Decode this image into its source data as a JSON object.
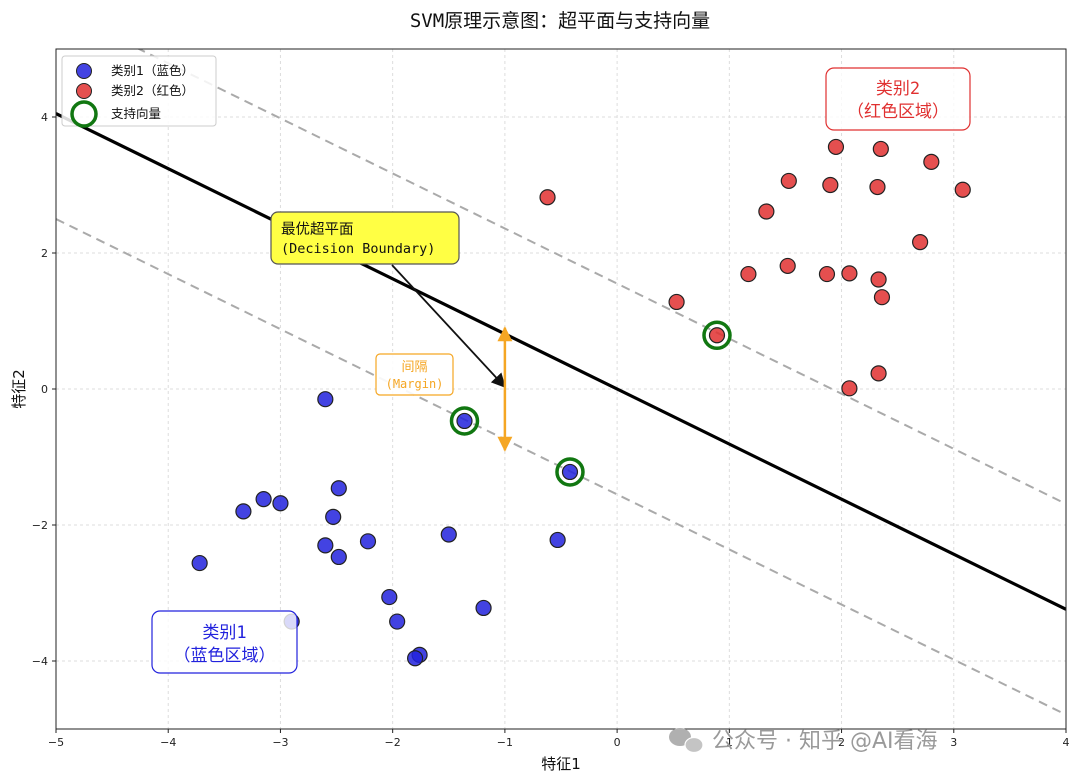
{
  "chart_data": {
    "type": "scatter",
    "title": "SVM原理示意图：超平面与支持向量",
    "xlabel": "特征1",
    "ylabel": "特征2",
    "xlim": [
      -5,
      4
    ],
    "ylim": [
      -5,
      5
    ],
    "xticks": [
      -5,
      -4,
      -3,
      -2,
      -1,
      0,
      1,
      2,
      3,
      4
    ],
    "yticks": [
      -4,
      -2,
      0,
      2,
      4
    ],
    "grid": true,
    "legend_position": "top-left",
    "series": [
      {
        "name": "类别1（蓝色）",
        "color": "#2222dd",
        "points": [
          [
            -2.6,
            -0.15
          ],
          [
            -3.15,
            -1.62
          ],
          [
            -3.0,
            -1.68
          ],
          [
            -3.33,
            -1.8
          ],
          [
            -2.48,
            -1.46
          ],
          [
            -2.53,
            -1.88
          ],
          [
            -2.6,
            -2.3
          ],
          [
            -2.48,
            -2.47
          ],
          [
            -2.22,
            -2.24
          ],
          [
            -3.72,
            -2.56
          ],
          [
            -1.5,
            -2.14
          ],
          [
            -0.53,
            -2.22
          ],
          [
            -2.03,
            -3.06
          ],
          [
            -1.19,
            -3.22
          ],
          [
            -2.9,
            -3.42
          ],
          [
            -1.96,
            -3.42
          ],
          [
            -1.76,
            -3.91
          ],
          [
            -1.8,
            -3.96
          ],
          [
            -1.36,
            -0.47
          ],
          [
            -0.42,
            -1.22
          ]
        ]
      },
      {
        "name": "类别2（红色）",
        "color": "#e03030",
        "points": [
          [
            1.95,
            3.56
          ],
          [
            2.35,
            3.53
          ],
          [
            2.8,
            3.34
          ],
          [
            3.08,
            2.93
          ],
          [
            1.53,
            3.06
          ],
          [
            1.9,
            3.0
          ],
          [
            2.32,
            2.97
          ],
          [
            1.33,
            2.61
          ],
          [
            -0.62,
            2.82
          ],
          [
            2.7,
            2.16
          ],
          [
            1.17,
            1.69
          ],
          [
            1.52,
            1.81
          ],
          [
            1.87,
            1.69
          ],
          [
            2.07,
            1.7
          ],
          [
            2.33,
            1.61
          ],
          [
            2.36,
            1.35
          ],
          [
            0.53,
            1.28
          ],
          [
            0.89,
            0.79
          ],
          [
            2.33,
            0.23
          ],
          [
            2.07,
            0.01
          ]
        ]
      }
    ],
    "support_vectors": {
      "name": "支持向量",
      "color": "#117711",
      "points": [
        [
          -1.36,
          -0.47
        ],
        [
          -0.42,
          -1.22
        ],
        [
          0.89,
          0.79
        ]
      ]
    },
    "hyperplane": {
      "slope": -0.81,
      "intercept": 0.0,
      "color": "#000000"
    },
    "margin_lines": [
      {
        "slope": -0.81,
        "intercept": 1.55,
        "color": "#aaaaaa",
        "style": "dashed"
      },
      {
        "slope": -0.81,
        "intercept": -1.55,
        "color": "#aaaaaa",
        "style": "dashed"
      }
    ],
    "annotations": {
      "hyperplane": {
        "line1": "最优超平面",
        "line2": "(Decision Boundary)",
        "box_color": "#ffff44",
        "arrow_to": [
          -1.0,
          0.03
        ]
      },
      "margin": {
        "line1": "间隔",
        "line2": "(Margin)",
        "color": "#f5a623",
        "arrow_x": -1.0,
        "arrow_y": [
          0.9,
          -0.9
        ]
      },
      "region1": {
        "line1": "类别1",
        "line2": "（蓝色区域）",
        "color": "#2222dd"
      },
      "region2": {
        "line1": "类别2",
        "line2": "（红色区域）",
        "color": "#e03030"
      }
    }
  },
  "watermark": "公众号 · 知乎 @AI看海"
}
